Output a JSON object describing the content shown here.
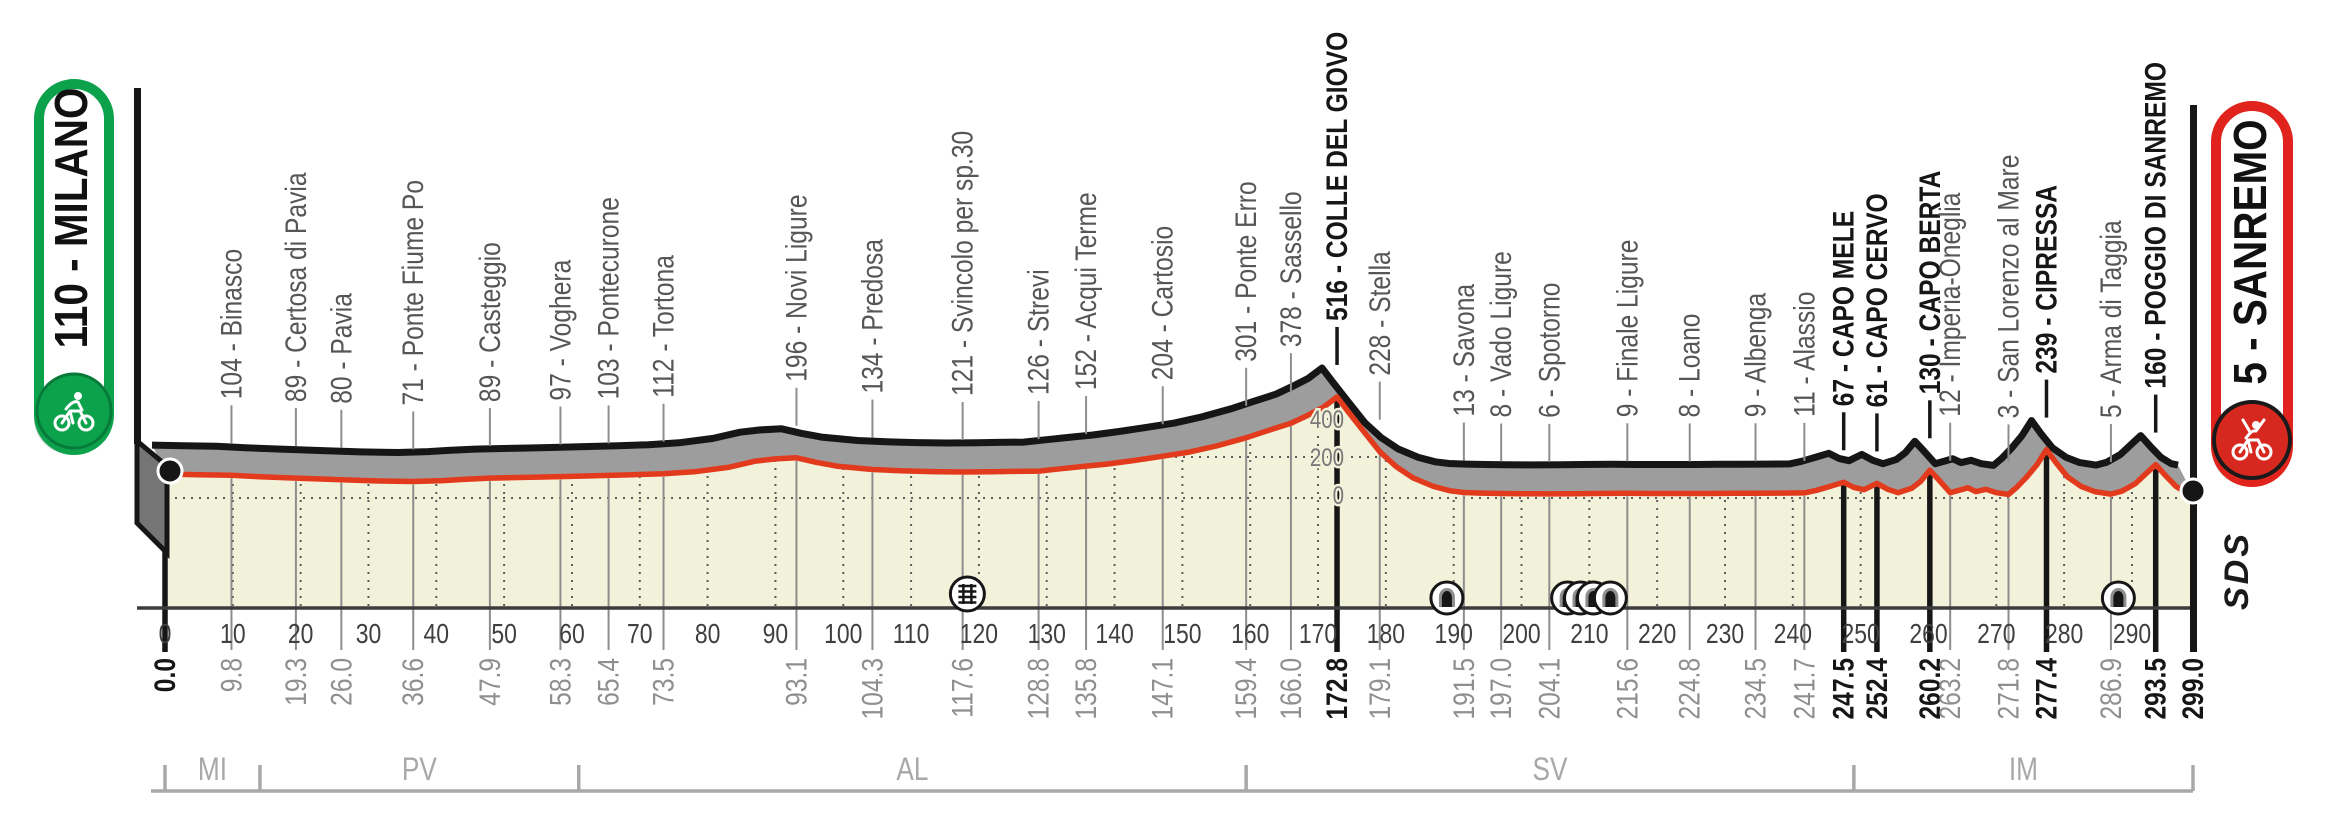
{
  "chart_data": {
    "type": "area",
    "description": "Road race altimetric profile Milano - Sanremo",
    "start_badge": {
      "label": "110 - MILANO",
      "color": "#0ca24c",
      "icon": "cyclist-icon"
    },
    "finish_badge": {
      "label": "5 - SANREMO",
      "color": "#e0231c",
      "icon": "cyclist-winner-icon"
    },
    "sds_logo": "SDS",
    "xlabel": "",
    "ylabel": "",
    "km_axis": {
      "min": 0,
      "max": 299,
      "tick_step": 10
    },
    "elevation_axis": {
      "gridlines": [
        0,
        200,
        400
      ],
      "unit": "m"
    },
    "waypoints": [
      {
        "km": 0.0,
        "km_label": "0.0",
        "elev": 110,
        "name": "MILANO",
        "bold": true,
        "top_label": false
      },
      {
        "km": 9.8,
        "km_label": "9.8",
        "elev": 104,
        "name": "Binasco",
        "bold": false,
        "top_label": true
      },
      {
        "km": 19.3,
        "km_label": "19.3",
        "elev": 89,
        "name": "Certosa di Pavia",
        "bold": false,
        "top_label": true
      },
      {
        "km": 26.0,
        "km_label": "26.0",
        "elev": 80,
        "name": "Pavia",
        "bold": false,
        "top_label": true
      },
      {
        "km": 36.6,
        "km_label": "36.6",
        "elev": 71,
        "name": "Ponte Fiume Po",
        "bold": false,
        "top_label": true
      },
      {
        "km": 47.9,
        "km_label": "47.9",
        "elev": 89,
        "name": "Casteggio",
        "bold": false,
        "top_label": true
      },
      {
        "km": 58.3,
        "km_label": "58.3",
        "elev": 97,
        "name": "Voghera",
        "bold": false,
        "top_label": true
      },
      {
        "km": 65.4,
        "km_label": "65.4",
        "elev": 103,
        "name": "Pontecurone",
        "bold": false,
        "top_label": true
      },
      {
        "km": 73.5,
        "km_label": "73.5",
        "elev": 112,
        "name": "Tortona",
        "bold": false,
        "top_label": true
      },
      {
        "km": 93.1,
        "km_label": "93.1",
        "elev": 196,
        "name": "Novi Ligure",
        "bold": false,
        "top_label": true
      },
      {
        "km": 104.3,
        "km_label": "104.3",
        "elev": 134,
        "name": "Predosa",
        "bold": false,
        "top_label": true
      },
      {
        "km": 117.6,
        "km_label": "117.6",
        "elev": 121,
        "name": "Svincolo per sp.30",
        "bold": false,
        "top_label": true
      },
      {
        "km": 128.8,
        "km_label": "128.8",
        "elev": 126,
        "name": "Strevi",
        "bold": false,
        "top_label": true
      },
      {
        "km": 135.8,
        "km_label": "135.8",
        "elev": 152,
        "name": "Acqui Terme",
        "bold": false,
        "top_label": true
      },
      {
        "km": 147.1,
        "km_label": "147.1",
        "elev": 204,
        "name": "Cartosio",
        "bold": false,
        "top_label": true
      },
      {
        "km": 159.4,
        "km_label": "159.4",
        "elev": 301,
        "name": "Ponte Erro",
        "bold": false,
        "top_label": true
      },
      {
        "km": 166.0,
        "km_label": "166.0",
        "elev": 378,
        "name": "Sassello",
        "bold": false,
        "top_label": true
      },
      {
        "km": 172.8,
        "km_label": "172.8",
        "elev": 516,
        "name": "COLLE DEL GIOVO",
        "bold": true,
        "top_label": true
      },
      {
        "km": 179.1,
        "km_label": "179.1",
        "elev": 228,
        "name": "Stella",
        "bold": false,
        "top_label": true
      },
      {
        "km": 191.5,
        "km_label": "191.5",
        "elev": 13,
        "name": "Savona",
        "bold": false,
        "top_label": true
      },
      {
        "km": 197.0,
        "km_label": "197.0",
        "elev": 8,
        "name": "Vado Ligure",
        "bold": false,
        "top_label": true
      },
      {
        "km": 204.1,
        "km_label": "204.1",
        "elev": 6,
        "name": "Spotorno",
        "bold": false,
        "top_label": true
      },
      {
        "km": 215.6,
        "km_label": "215.6",
        "elev": 9,
        "name": "Finale Ligure",
        "bold": false,
        "top_label": true
      },
      {
        "km": 224.8,
        "km_label": "224.8",
        "elev": 8,
        "name": "Loano",
        "bold": false,
        "top_label": true
      },
      {
        "km": 234.5,
        "km_label": "234.5",
        "elev": 9,
        "name": "Albenga",
        "bold": false,
        "top_label": true
      },
      {
        "km": 241.7,
        "km_label": "241.7",
        "elev": 11,
        "name": "Alassio",
        "bold": false,
        "top_label": true
      },
      {
        "km": 247.5,
        "km_label": "247.5",
        "elev": 67,
        "name": "CAPO MELE",
        "bold": true,
        "top_label": true
      },
      {
        "km": 252.4,
        "km_label": "252.4",
        "elev": 61,
        "name": "CAPO CERVO",
        "bold": true,
        "top_label": true
      },
      {
        "km": 260.2,
        "km_label": "260.2",
        "elev": 130,
        "name": "CAPO BERTA",
        "bold": true,
        "top_label": true
      },
      {
        "km": 263.2,
        "km_label": "263.2",
        "elev": 12,
        "name": "Imperia-Oneglia",
        "bold": false,
        "top_label": true
      },
      {
        "km": 271.8,
        "km_label": "271.8",
        "elev": 3,
        "name": "San Lorenzo al Mare",
        "bold": false,
        "top_label": true
      },
      {
        "km": 277.4,
        "km_label": "277.4",
        "elev": 239,
        "name": "CIPRESSA",
        "bold": true,
        "top_label": true
      },
      {
        "km": 286.9,
        "km_label": "286.9",
        "elev": 5,
        "name": "Arma di Taggia",
        "bold": false,
        "top_label": true
      },
      {
        "km": 293.5,
        "km_label": "293.5",
        "elev": 160,
        "name": "POGGIO DI SANREMO",
        "bold": true,
        "top_label": true
      },
      {
        "km": 299.0,
        "km_label": "299.0",
        "elev": 5,
        "name": "SANREMO",
        "bold": true,
        "top_label": false
      }
    ],
    "profile": [
      [
        0.3,
        110
      ],
      [
        5,
        107
      ],
      [
        9.8,
        104
      ],
      [
        14,
        96
      ],
      [
        19.3,
        89
      ],
      [
        26,
        80
      ],
      [
        31,
        74
      ],
      [
        36.6,
        71
      ],
      [
        41,
        76
      ],
      [
        44,
        82
      ],
      [
        47.9,
        89
      ],
      [
        52,
        92
      ],
      [
        55,
        94
      ],
      [
        58.3,
        97
      ],
      [
        62,
        100
      ],
      [
        65.4,
        103
      ],
      [
        69,
        107
      ],
      [
        73.5,
        112
      ],
      [
        78,
        122
      ],
      [
        83,
        145
      ],
      [
        87,
        178
      ],
      [
        90,
        190
      ],
      [
        93.1,
        196
      ],
      [
        96,
        172
      ],
      [
        99,
        152
      ],
      [
        104.3,
        134
      ],
      [
        109,
        127
      ],
      [
        113,
        123
      ],
      [
        117.6,
        121
      ],
      [
        122,
        122
      ],
      [
        125,
        124
      ],
      [
        128.8,
        126
      ],
      [
        132,
        138
      ],
      [
        135.8,
        152
      ],
      [
        139,
        163
      ],
      [
        143,
        182
      ],
      [
        147.1,
        204
      ],
      [
        151,
        226
      ],
      [
        155,
        258
      ],
      [
        159.4,
        301
      ],
      [
        162.5,
        338
      ],
      [
        166,
        378
      ],
      [
        168.5,
        420
      ],
      [
        170.8,
        462
      ],
      [
        172.8,
        516
      ],
      [
        174.3,
        445
      ],
      [
        176.5,
        345
      ],
      [
        179.1,
        228
      ],
      [
        181.5,
        150
      ],
      [
        184,
        90
      ],
      [
        187,
        45
      ],
      [
        189.5,
        22
      ],
      [
        191.5,
        13
      ],
      [
        194,
        10
      ],
      [
        197,
        8
      ],
      [
        200,
        7
      ],
      [
        204.1,
        6
      ],
      [
        208,
        7
      ],
      [
        211,
        8
      ],
      [
        215.6,
        9
      ],
      [
        219,
        8
      ],
      [
        222,
        8
      ],
      [
        224.8,
        8
      ],
      [
        228,
        8
      ],
      [
        231,
        9
      ],
      [
        234.5,
        9
      ],
      [
        238,
        10
      ],
      [
        241.7,
        11
      ],
      [
        243.5,
        25
      ],
      [
        245.5,
        45
      ],
      [
        247.5,
        67
      ],
      [
        249,
        40
      ],
      [
        250.5,
        28
      ],
      [
        252.4,
        61
      ],
      [
        254,
        30
      ],
      [
        255.5,
        12
      ],
      [
        257.5,
        35
      ],
      [
        258.8,
        70
      ],
      [
        260.2,
        130
      ],
      [
        261.5,
        80
      ],
      [
        263.2,
        12
      ],
      [
        264.5,
        25
      ],
      [
        265.8,
        38
      ],
      [
        267,
        18
      ],
      [
        268.5,
        30
      ],
      [
        270,
        12
      ],
      [
        271.8,
        3
      ],
      [
        273,
        40
      ],
      [
        274.5,
        95
      ],
      [
        276,
        160
      ],
      [
        277.4,
        239
      ],
      [
        278.8,
        170
      ],
      [
        280.5,
        95
      ],
      [
        282.5,
        45
      ],
      [
        284.5,
        18
      ],
      [
        286.9,
        5
      ],
      [
        288.5,
        20
      ],
      [
        290.5,
        60
      ],
      [
        292,
        110
      ],
      [
        293.5,
        160
      ],
      [
        295,
        100
      ],
      [
        296.5,
        45
      ],
      [
        298,
        12
      ],
      [
        299,
        5
      ]
    ],
    "provinces": [
      {
        "code": "MI",
        "from_km": 0,
        "to_km": 14
      },
      {
        "code": "PV",
        "from_km": 14,
        "to_km": 61
      },
      {
        "code": "AL",
        "from_km": 61,
        "to_km": 159.4
      },
      {
        "code": "SV",
        "from_km": 159.4,
        "to_km": 249
      },
      {
        "code": "IM",
        "from_km": 249,
        "to_km": 299
      }
    ],
    "symbols": {
      "tunnels_km": [
        189,
        206.8,
        208.7,
        210.6,
        213.1,
        288
      ],
      "level_crossing_km": [
        118.3
      ]
    },
    "colors": {
      "profile_line": "#e23a1c",
      "profile_fill": "#f2f2da",
      "ribbon_gray": "#9d9d9d",
      "ink": "#161616",
      "gray_text": "#8f8f8f",
      "axis": "#3c3c3c",
      "start_green": "#0ca24c",
      "finish_red": "#e0231c"
    }
  }
}
